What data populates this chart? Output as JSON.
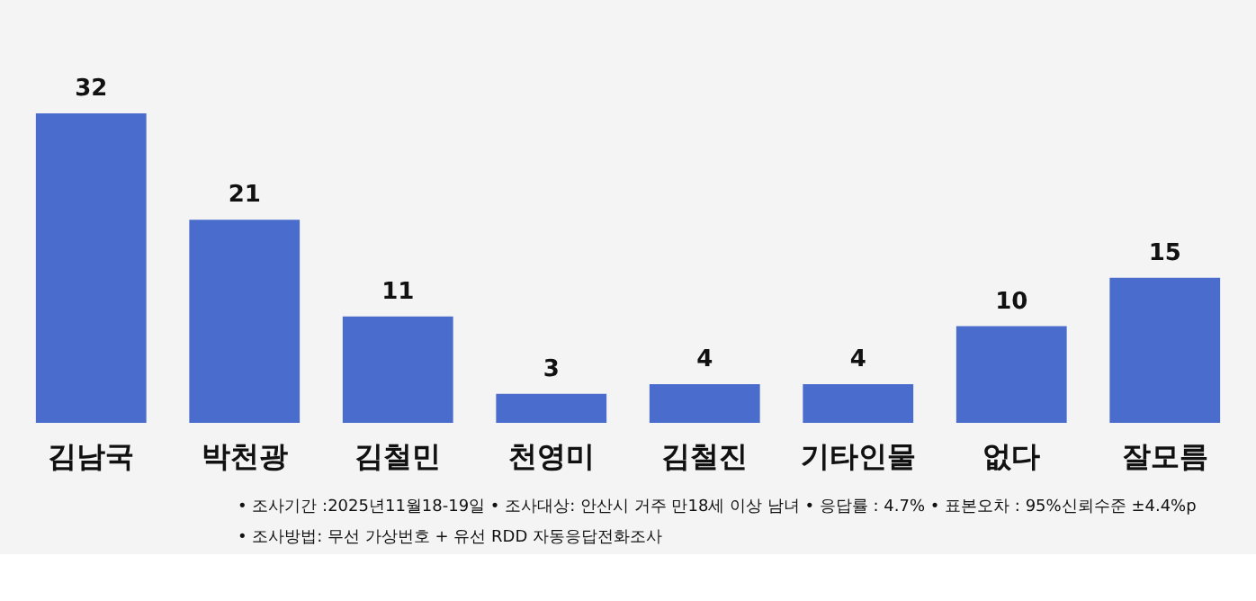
{
  "chart_data": {
    "type": "bar",
    "categories": [
      "김남국",
      "박천광",
      "김철민",
      "천영미",
      "김철진",
      "기타인물",
      "없다",
      "잘모름"
    ],
    "values": [
      32,
      21,
      11,
      3,
      4,
      4,
      10,
      15
    ],
    "color": "#4a6ccc",
    "data_labels": true,
    "annotations": [
      "• 조사기간 :2025년11월18-19일  • 조사대상: 안산시 거주 만18세 이상 남녀  • 응답률 : 4.7% • 표본오차 : 95%신뢰수준 ±4.4%p",
      "• 조사방법: 무선 가상번호 + 유선 RDD 자동응답전화조사"
    ]
  }
}
